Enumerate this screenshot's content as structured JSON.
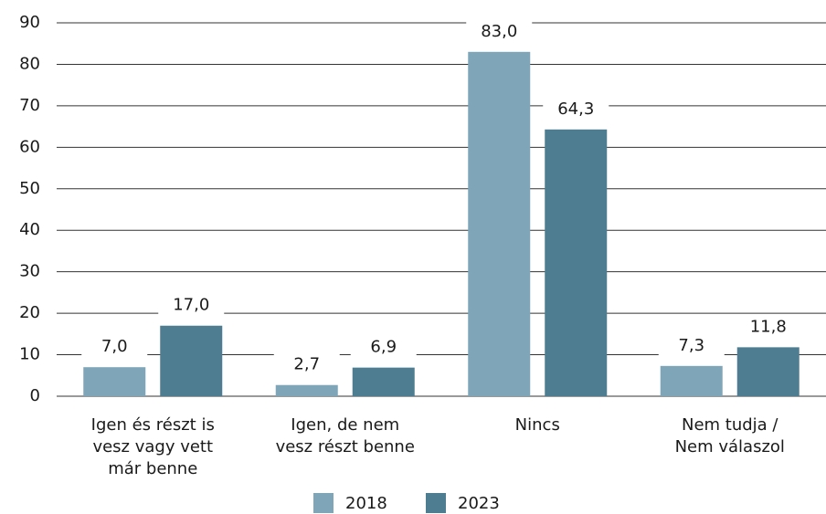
{
  "chart_data": {
    "type": "bar",
    "categories": [
      "Igen és részt is\nvesz vagy vett\nmár benne",
      "Igen, de nem\nvesz részt benne",
      "Nincs",
      "Nem tudja /\nNem válaszol"
    ],
    "series": [
      {
        "name": "2018",
        "color": "#7fa5b8",
        "values": [
          7.0,
          2.7,
          83.0,
          7.3
        ],
        "value_labels": [
          "7,0",
          "2,7",
          "83,0",
          "7,3"
        ]
      },
      {
        "name": "2023",
        "color": "#4e7d91",
        "values": [
          17.0,
          6.9,
          64.3,
          11.8
        ],
        "value_labels": [
          "17,0",
          "6,9",
          "64,3",
          "11,8"
        ]
      }
    ],
    "ylim": [
      0,
      90
    ],
    "yticks": [
      0,
      10,
      20,
      30,
      40,
      50,
      60,
      70,
      80,
      90
    ],
    "grid": true,
    "legend": "bottom"
  }
}
